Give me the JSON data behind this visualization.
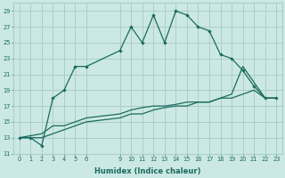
{
  "xlabel": "Humidex (Indice chaleur)",
  "background_color": "#cce8e4",
  "grid_color": "#aaceca",
  "line_color": "#1a6b5e",
  "xlim": [
    -0.5,
    23.5
  ],
  "ylim": [
    11,
    30
  ],
  "yticks": [
    11,
    13,
    15,
    17,
    19,
    21,
    23,
    25,
    27,
    29
  ],
  "xticks": [
    0,
    1,
    2,
    3,
    4,
    5,
    6,
    9,
    10,
    11,
    12,
    13,
    14,
    15,
    16,
    17,
    18,
    19,
    20,
    21,
    22,
    23
  ],
  "line1_x": [
    0,
    1,
    2,
    3,
    4,
    5,
    6,
    9,
    10,
    11,
    12,
    13,
    14,
    15,
    16,
    17,
    18,
    19,
    20,
    21,
    22,
    23
  ],
  "line1_y": [
    13,
    13,
    12,
    18,
    19,
    22,
    22,
    24,
    27,
    25,
    28.5,
    25,
    29,
    28.5,
    27,
    26.5,
    23.5,
    23,
    21.5,
    19.5,
    18,
    18
  ],
  "line2_x": [
    0,
    2,
    3,
    4,
    5,
    6,
    9,
    10,
    11,
    12,
    13,
    14,
    15,
    16,
    17,
    18,
    19,
    20,
    21,
    22,
    23
  ],
  "line2_y": [
    13,
    13.5,
    14.5,
    14.5,
    15,
    15.5,
    16,
    16.5,
    16.8,
    17,
    17,
    17.2,
    17.5,
    17.5,
    17.5,
    18,
    18,
    18.5,
    19,
    18,
    18
  ],
  "line3_x": [
    0,
    2,
    6,
    9,
    10,
    11,
    12,
    13,
    14,
    15,
    16,
    17,
    18,
    19,
    20,
    21,
    22,
    23
  ],
  "line3_y": [
    13,
    13,
    15,
    15.5,
    16,
    16,
    16.5,
    16.8,
    17,
    17,
    17.5,
    17.5,
    18,
    18.5,
    22,
    20,
    18,
    18
  ]
}
